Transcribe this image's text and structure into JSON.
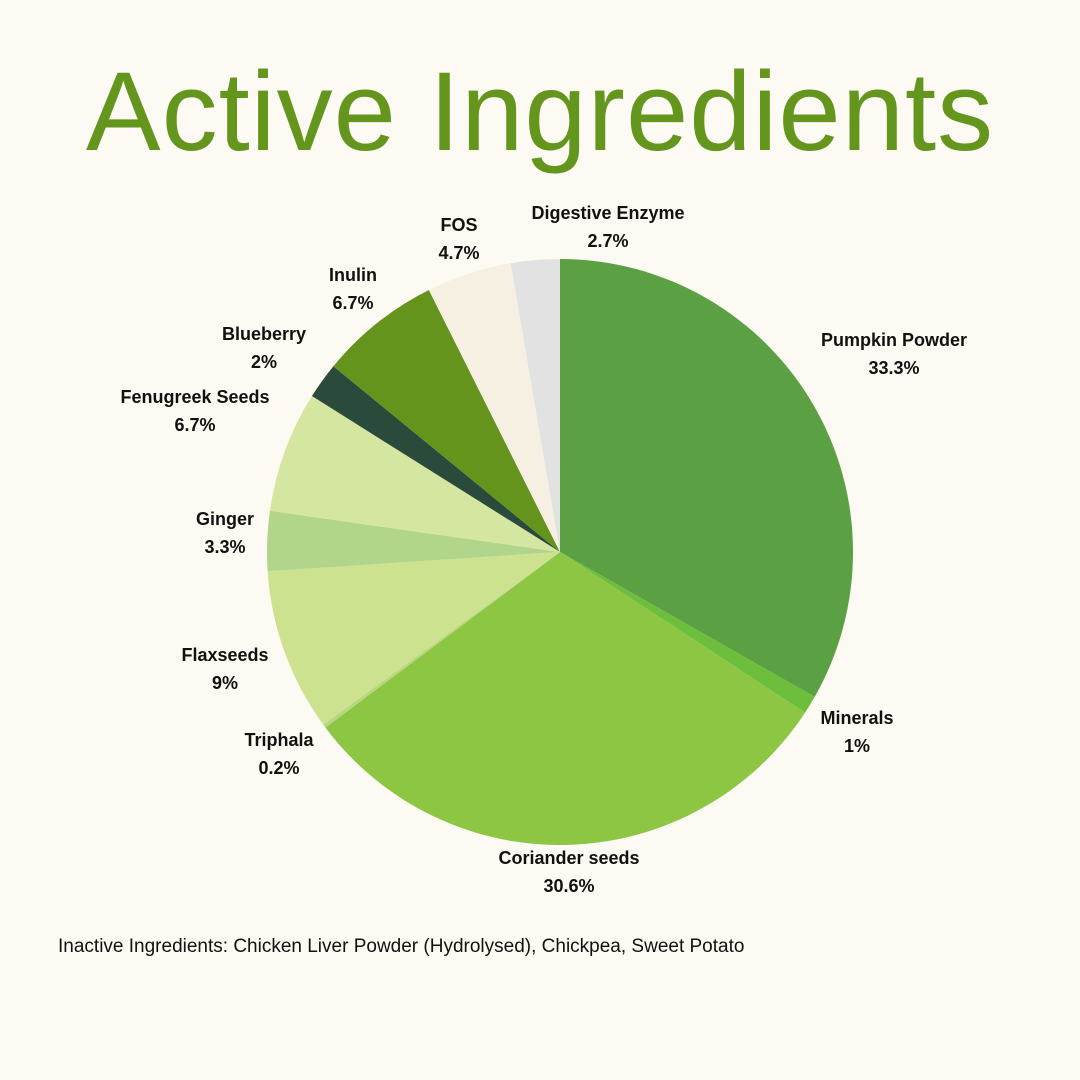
{
  "chart_data": {
    "type": "pie",
    "title": "Active Ingredients",
    "slices": [
      {
        "label": "Pumpkin Powder",
        "value": 33.3,
        "value_label": "33.3%",
        "color": "#5ba043"
      },
      {
        "label": "Minerals",
        "value": 1,
        "value_label": "1%",
        "color": "#6cbe3c"
      },
      {
        "label": "Coriander seeds",
        "value": 30.6,
        "value_label": "30.6%",
        "color": "#8cc643"
      },
      {
        "label": "Triphala",
        "value": 0.2,
        "value_label": "0.2%",
        "color": "#b8d67e"
      },
      {
        "label": "Flaxseeds",
        "value": 9,
        "value_label": "9%",
        "color": "#cce28e"
      },
      {
        "label": "Ginger",
        "value": 3.3,
        "value_label": "3.3%",
        "color": "#b2d58c"
      },
      {
        "label": "Fenugreek Seeds",
        "value": 6.7,
        "value_label": "6.7%",
        "color": "#d4e69f"
      },
      {
        "label": "Blueberry",
        "value": 2,
        "value_label": "2%",
        "color": "#2a4b3b"
      },
      {
        "label": "Inulin",
        "value": 6.7,
        "value_label": "6.7%",
        "color": "#64941c"
      },
      {
        "label": "FOS",
        "value": 4.7,
        "value_label": "4.7%",
        "color": "#f5f0e1"
      },
      {
        "label": "Digestive Enzyme",
        "value": 2.7,
        "value_label": "2.7%",
        "color": "#e2e2e2"
      }
    ]
  },
  "footnote": "Inactive Ingredients: Chicken Liver Powder (Hydrolysed), Chickpea, Sweet Potato",
  "colors": {
    "title": "#64961e",
    "background": "#fcfaf3"
  }
}
